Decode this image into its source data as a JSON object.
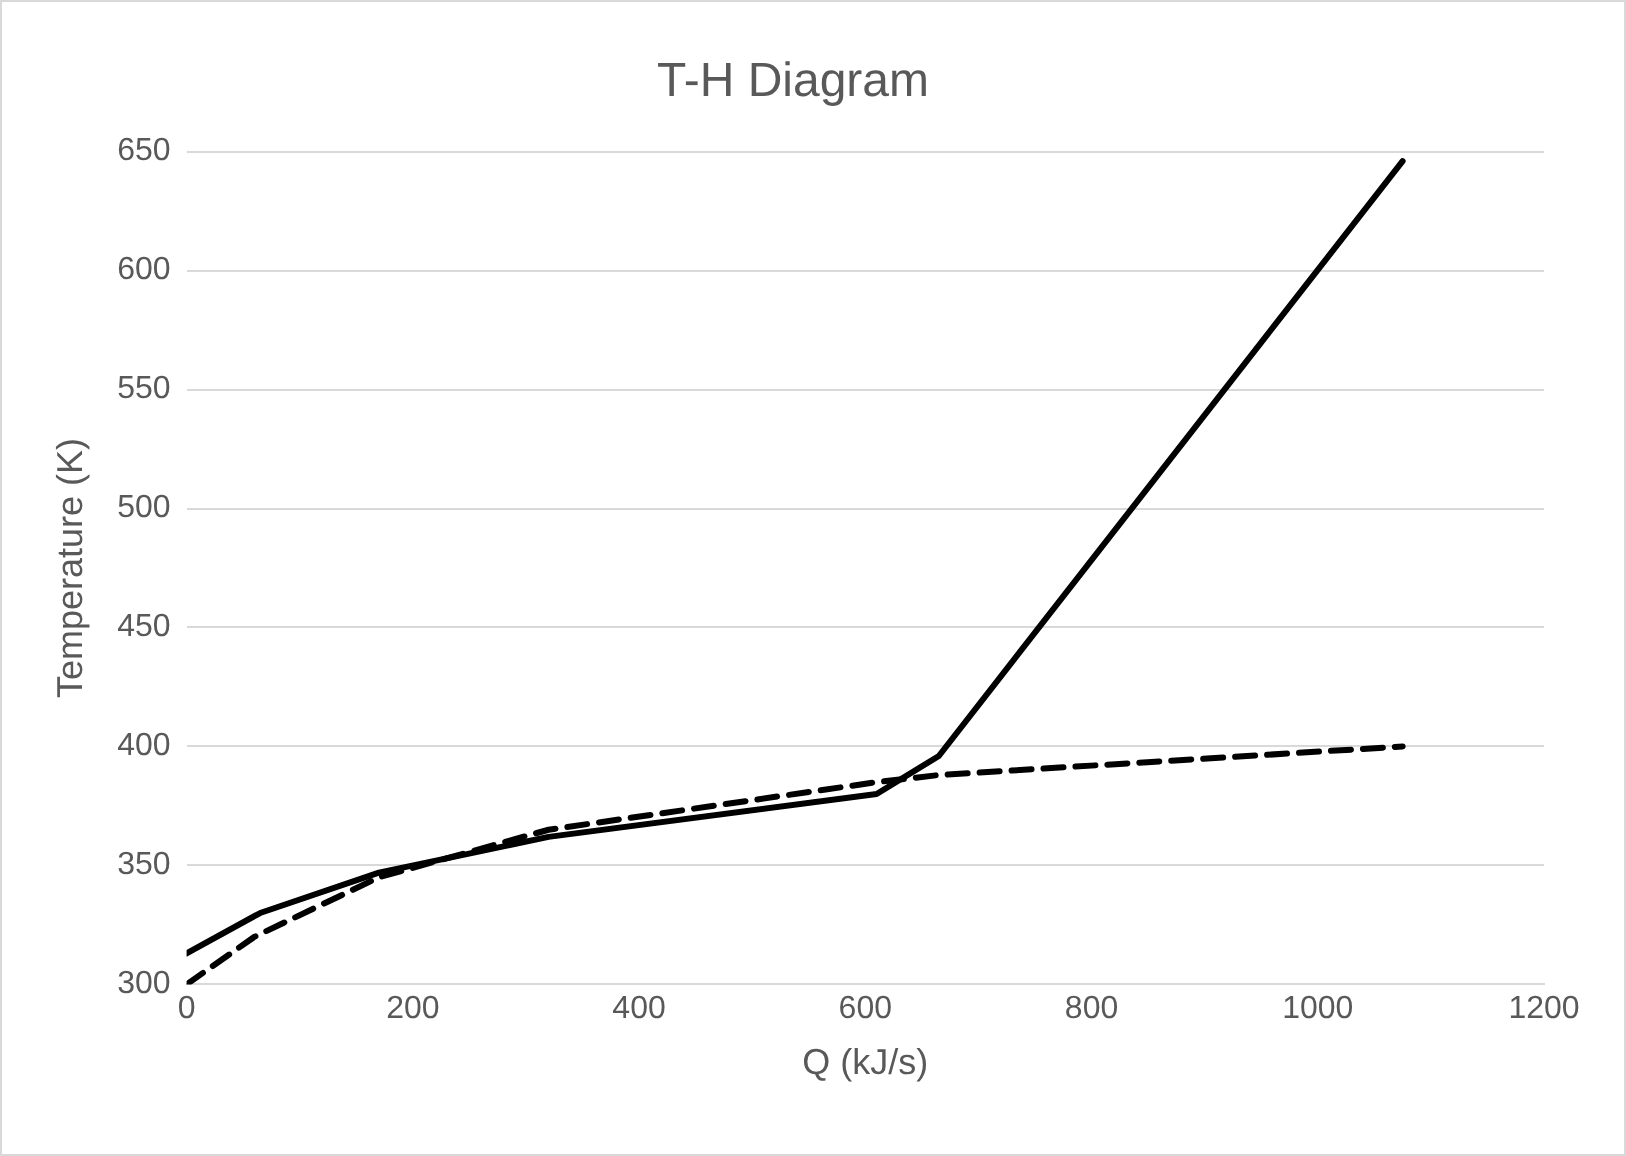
{
  "chart_data": {
    "type": "line",
    "title": "T-H Diagram",
    "xlabel": "Q (kJ/s)",
    "ylabel": "Temperature (K)",
    "xlim": [
      0,
      1200
    ],
    "xticks": [
      0,
      200,
      400,
      600,
      800,
      1000,
      1200
    ],
    "ylim": [
      300,
      650
    ],
    "yticks": [
      300,
      350,
      400,
      450,
      500,
      550,
      600,
      650
    ],
    "grid": "y",
    "legend": false,
    "marker": "none",
    "series": [
      {
        "color": "#000000",
        "line_style": "solid",
        "x": [
          0,
          65,
          170,
          320,
          610,
          665,
          1075
        ],
        "values": [
          313,
          330,
          347,
          362,
          380,
          396,
          646
        ]
      },
      {
        "color": "#000000",
        "line_style": "dashed",
        "x": [
          0,
          60,
          170,
          320,
          610,
          665,
          1075
        ],
        "values": [
          300,
          320,
          345,
          365,
          385,
          388,
          400
        ]
      }
    ]
  }
}
